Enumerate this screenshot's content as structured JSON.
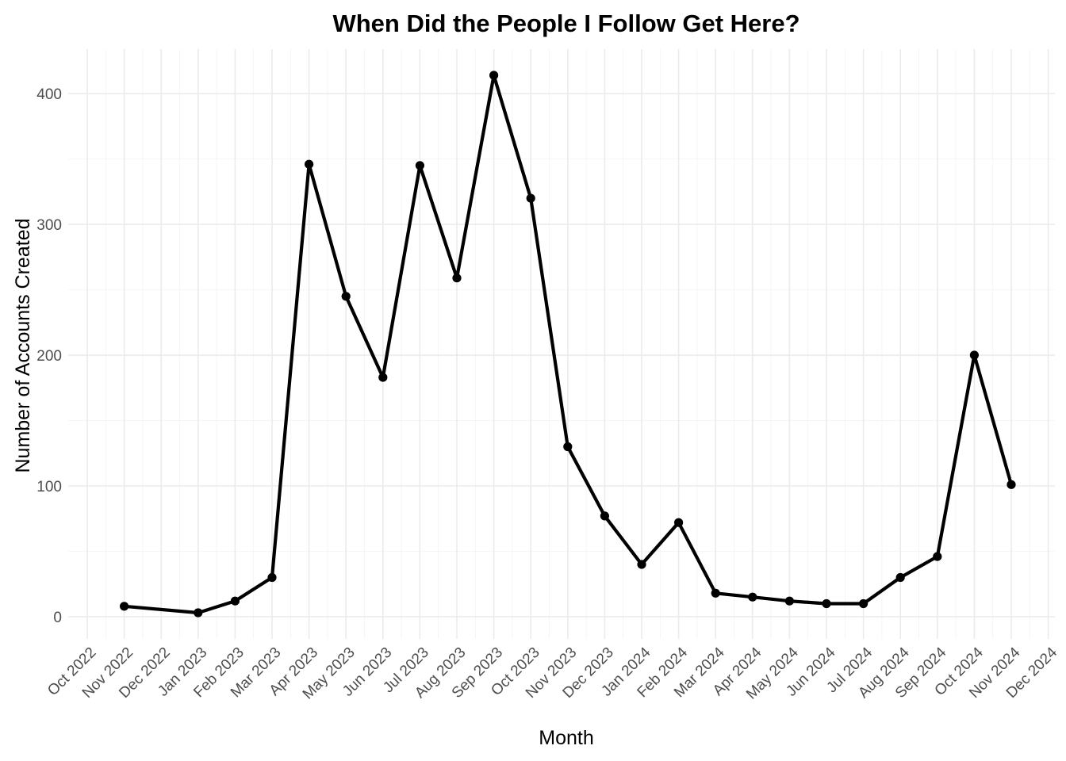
{
  "chart_data": {
    "type": "line",
    "title": "When Did the People I Follow Get Here?",
    "xlabel": "Month",
    "ylabel": "Number of Accounts Created",
    "x_tick_labels": [
      "Oct 2022",
      "Nov 2022",
      "Dec 2022",
      "Jan 2023",
      "Feb 2023",
      "Mar 2023",
      "Apr 2023",
      "May 2023",
      "Jun 2023",
      "Jul 2023",
      "Aug 2023",
      "Sep 2023",
      "Oct 2023",
      "Nov 2023",
      "Dec 2023",
      "Jan 2024",
      "Feb 2024",
      "Mar 2024",
      "Apr 2024",
      "May 2024",
      "Jun 2024",
      "Jul 2024",
      "Aug 2024",
      "Sep 2024",
      "Oct 2024",
      "Nov 2024",
      "Dec 2024"
    ],
    "y_ticks": [
      0,
      100,
      200,
      300,
      400
    ],
    "ylim": [
      -17,
      434
    ],
    "grid": true,
    "points": [
      {
        "x": "Nov 2022",
        "y": 8
      },
      {
        "x": "Jan 2023",
        "y": 3
      },
      {
        "x": "Feb 2023",
        "y": 12
      },
      {
        "x": "Mar 2023",
        "y": 30
      },
      {
        "x": "Apr 2023",
        "y": 346
      },
      {
        "x": "May 2023",
        "y": 245
      },
      {
        "x": "Jun 2023",
        "y": 183
      },
      {
        "x": "Jul 2023",
        "y": 345
      },
      {
        "x": "Aug 2023",
        "y": 259
      },
      {
        "x": "Sep 2023",
        "y": 414
      },
      {
        "x": "Oct 2023",
        "y": 320
      },
      {
        "x": "Nov 2023",
        "y": 130
      },
      {
        "x": "Dec 2023",
        "y": 77
      },
      {
        "x": "Jan 2024",
        "y": 40
      },
      {
        "x": "Feb 2024",
        "y": 72
      },
      {
        "x": "Mar 2024",
        "y": 18
      },
      {
        "x": "Apr 2024",
        "y": 15
      },
      {
        "x": "May 2024",
        "y": 12
      },
      {
        "x": "Jun 2024",
        "y": 10
      },
      {
        "x": "Jul 2024",
        "y": 10
      },
      {
        "x": "Aug 2024",
        "y": 30
      },
      {
        "x": "Sep 2024",
        "y": 46
      },
      {
        "x": "Oct 2024",
        "y": 200
      },
      {
        "x": "Nov 2024",
        "y": 101
      }
    ],
    "colors": {
      "line": "#000000",
      "grid": "#ebebeb",
      "tick_text": "#4d4d4d"
    }
  }
}
